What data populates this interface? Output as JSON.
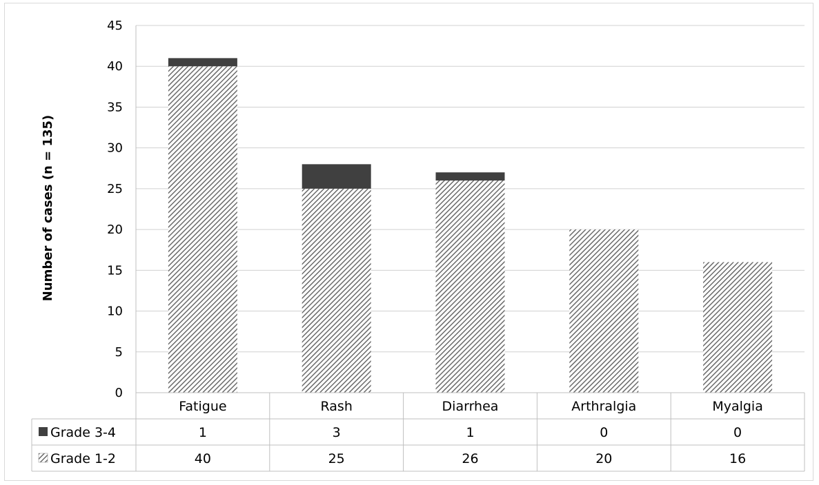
{
  "chart_data": {
    "type": "bar",
    "stacked": true,
    "categories": [
      "Fatigue",
      "Rash",
      "Diarrhea",
      "Arthralgia",
      "Myalgia"
    ],
    "series": [
      {
        "name": "Grade 1-2",
        "values": [
          40,
          25,
          26,
          20,
          16
        ],
        "fill": "hatched",
        "color": "#595959"
      },
      {
        "name": "Grade 3-4",
        "values": [
          1,
          3,
          1,
          0,
          0
        ],
        "fill": "solid",
        "color": "#404040"
      }
    ],
    "ylabel": "Number of cases (n = 135)",
    "xlabel": "",
    "ylim": [
      0,
      45
    ],
    "yticks": [
      0,
      5,
      10,
      15,
      20,
      25,
      30,
      35,
      40,
      45
    ],
    "grid": true,
    "legend": "data-table-left",
    "data_table_rows": [
      "Grade 3-4",
      "Grade 1-2"
    ]
  }
}
